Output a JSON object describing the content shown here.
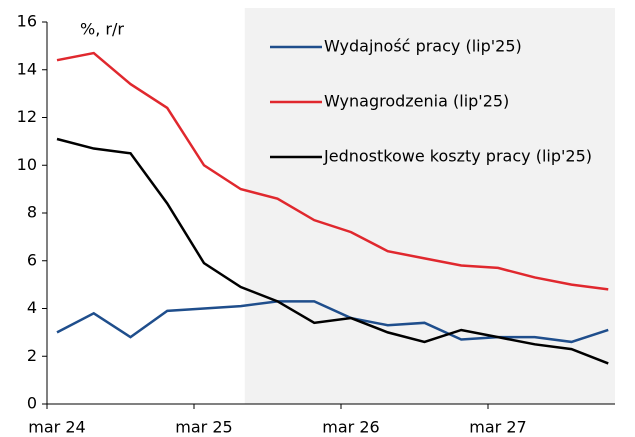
{
  "chart_data": {
    "type": "line",
    "y_unit_label": "%, r/r",
    "categories": [
      "mar 24",
      null,
      null,
      null,
      "mar 25",
      null,
      null,
      null,
      "mar 26",
      null,
      null,
      null,
      "mar 27",
      null,
      null,
      null
    ],
    "series": [
      {
        "name": "Wydajność pracy (lip'25)",
        "color": "#1f4e8c",
        "values": [
          3.0,
          3.8,
          2.8,
          3.9,
          4.0,
          4.1,
          4.3,
          4.3,
          3.6,
          3.3,
          3.4,
          2.7,
          2.8,
          2.8,
          2.6,
          3.1
        ]
      },
      {
        "name": "Wynagrodzenia (lip'25)",
        "color": "#e0282e",
        "values": [
          14.4,
          14.7,
          13.4,
          12.4,
          10.0,
          9.0,
          8.6,
          7.7,
          7.2,
          6.4,
          6.1,
          5.8,
          5.7,
          5.3,
          5.0,
          4.8
        ]
      },
      {
        "name": "Jednostkowe koszty pracy (lip'25)",
        "color": "#000000",
        "values": [
          11.1,
          10.7,
          10.5,
          8.4,
          5.9,
          4.9,
          4.3,
          3.4,
          3.6,
          3.0,
          2.6,
          3.1,
          2.8,
          2.5,
          2.3,
          1.7
        ]
      }
    ],
    "ylim": [
      0,
      16
    ],
    "yticks": [
      0,
      2,
      4,
      6,
      8,
      10,
      12,
      14,
      16
    ],
    "forecast_shading_start": 5,
    "legend": "upper right"
  }
}
